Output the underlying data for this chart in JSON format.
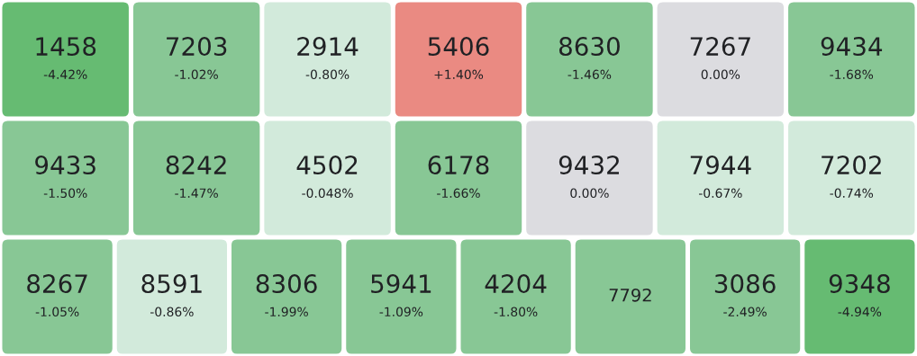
{
  "chart_data": {
    "type": "other",
    "categories": [
      "1458",
      "7203",
      "2914",
      "5406",
      "8630",
      "7267",
      "9434",
      "9433",
      "8242",
      "4502",
      "6178",
      "9432",
      "7944",
      "7202",
      "8267",
      "8591",
      "8306",
      "5941",
      "4204",
      "7792",
      "3086",
      "9348"
    ],
    "values": [
      -4.42,
      -1.02,
      -0.8,
      1.4,
      -1.46,
      0.0,
      -1.68,
      -1.5,
      -1.47,
      -0.048,
      -1.66,
      0.0,
      -0.67,
      -0.74,
      -1.05,
      -0.86,
      -1.99,
      -1.09,
      -1.8,
      null,
      -2.49,
      -4.94
    ],
    "value_labels": [
      "-4.42%",
      "-1.02%",
      "-0.80%",
      "+1.40%",
      "-1.46%",
      "0.00%",
      "-1.68%",
      "-1.50%",
      "-1.47%",
      "-0.048%",
      "-1.66%",
      "0.00%",
      "-0.67%",
      "-0.74%",
      "-1.05%",
      "-0.86%",
      "-1.99%",
      "-1.09%",
      "-1.80%",
      null,
      "-2.49%",
      "-4.94%"
    ]
  }
}
